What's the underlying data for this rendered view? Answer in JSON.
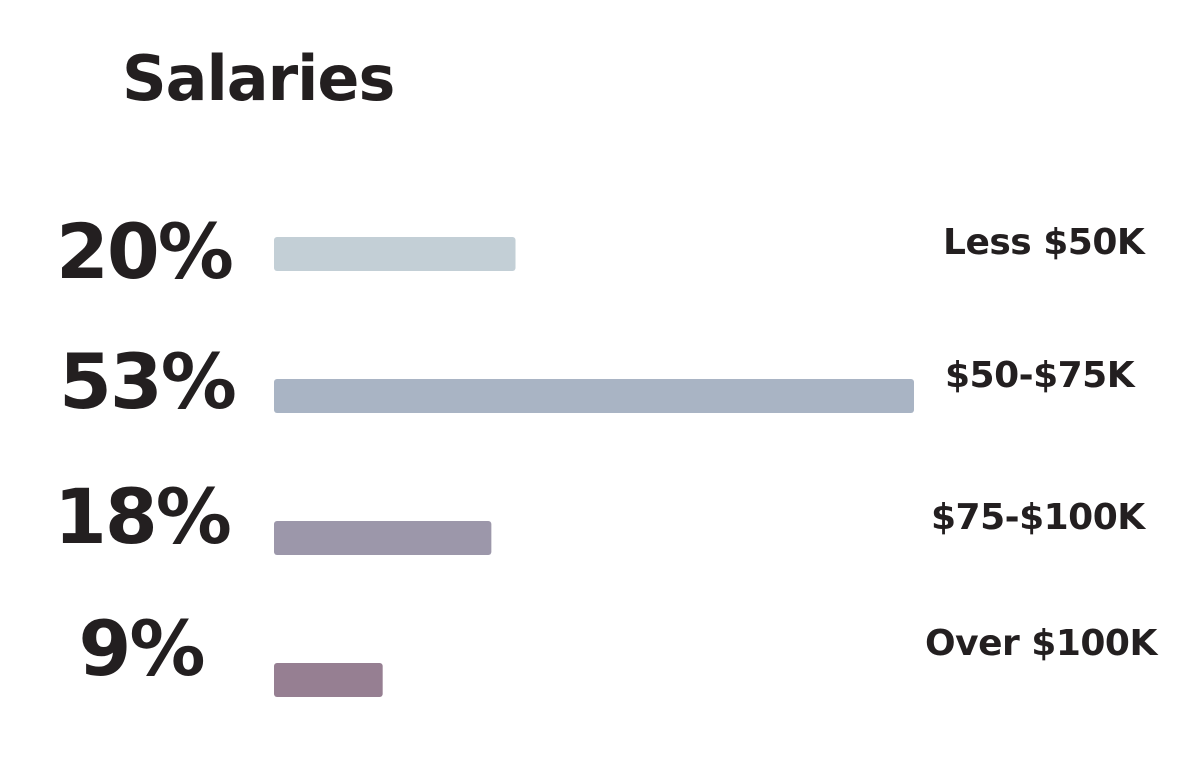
{
  "chart_data": {
    "type": "bar",
    "orientation": "horizontal",
    "title": "Salaries",
    "categories": [
      "Less $50K",
      "$50-$75K",
      "$75-$100K",
      "Over $100K"
    ],
    "values": [
      20,
      53,
      18,
      9
    ],
    "value_labels": [
      "20%",
      "53%",
      "18%",
      "9%"
    ],
    "unit": "%",
    "colors": [
      "#c3cfd6",
      "#a9b4c4",
      "#9c97aa",
      "#967f92"
    ],
    "xlim": [
      0,
      53
    ],
    "grid": false,
    "legend": "none"
  }
}
